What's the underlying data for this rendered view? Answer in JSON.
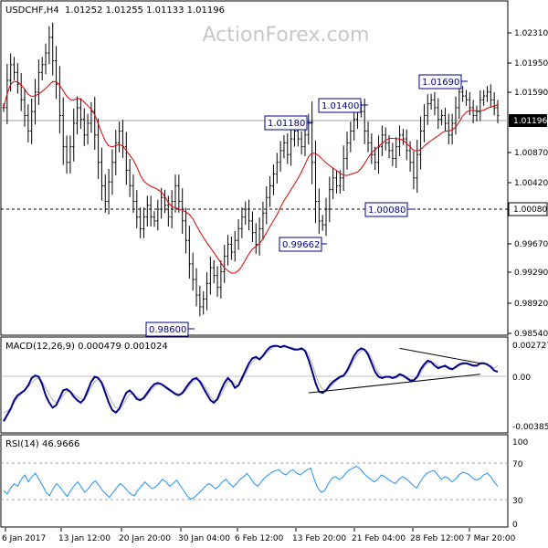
{
  "watermark": "ActionForex.com",
  "colors": {
    "background": "#ffffff",
    "bars": "#000000",
    "moving_average": "#e00000",
    "macd_line": "#00008b",
    "macd_signal": "#b0b0b0",
    "rsi_line": "#1e90ff",
    "label_border": "#00008b",
    "current_price_box": "#000000"
  },
  "chart_data": [
    {
      "type": "bar",
      "panel": "price",
      "title": "USDCHF,H4  1.01252 1.01255 1.01133 1.01196",
      "symbol": "USDCHF,H4",
      "ohlc": {
        "open": 1.01252,
        "high": 1.01255,
        "low": 1.01133,
        "close": 1.01196
      },
      "x_tick_labels": [
        "6 Jan 2017",
        "13 Jan 12:00",
        "20 Jan 20:00",
        "30 Jan 04:00",
        "6 Feb 12:00",
        "13 Feb 20:00",
        "21 Feb 04:00",
        "28 Feb 12:00",
        "7 Mar 20:00"
      ],
      "y_tick_labels": [
        "1.02310",
        "1.01950",
        "1.01590",
        "1.01196",
        "1.00870",
        "1.00420",
        "1.00080",
        "0.99670",
        "0.99290",
        "0.98920",
        "0.98540"
      ],
      "ylim": [
        0.9841,
        1.0262
      ],
      "current_price": "1.01196",
      "horizontal_lines": [
        {
          "value": 1.01196,
          "style": "solid"
        },
        {
          "value": 1.0008,
          "style": "dashed"
        }
      ],
      "annotations": [
        {
          "text": "1.01690",
          "value": 1.0169
        },
        {
          "text": "1.01400",
          "value": 1.014
        },
        {
          "text": "1.01180",
          "value": 1.0118
        },
        {
          "text": "1.00080",
          "value": 1.0008
        },
        {
          "text": "0.99662",
          "value": 0.99662
        },
        {
          "text": "0.98600",
          "value": 0.986
        }
      ],
      "closes": [
        1.013,
        1.0165,
        1.0185,
        1.0175,
        1.016,
        1.014,
        1.012,
        1.01,
        1.0125,
        1.015,
        1.0175,
        1.0185,
        1.02,
        1.022,
        1.019,
        1.016,
        1.012,
        1.008,
        1.006,
        1.008,
        1.011,
        1.013,
        1.0115,
        1.0095,
        1.011,
        1.0125,
        1.0095,
        1.006,
        1.003,
        1.001,
        1.0035,
        1.006,
        1.0085,
        1.01,
        1.008,
        1.005,
        1.003,
        1.001,
        0.999,
        0.9975,
        0.999,
        1.0005,
        0.999,
        0.9985,
        1.0,
        1.0015,
        1.0005,
        0.999,
        1.001,
        1.003,
        1.001,
        0.9985,
        0.996,
        0.993,
        0.991,
        0.989,
        0.9875,
        0.9885,
        0.9905,
        0.9925,
        0.9915,
        0.99,
        0.992,
        0.994,
        0.9955,
        0.9945,
        0.996,
        0.9975,
        0.999,
        1.0,
        0.9985,
        0.997,
        0.9955,
        0.9975,
        0.9995,
        1.0015,
        1.003,
        1.0045,
        1.006,
        1.0075,
        1.0085,
        1.007,
        1.009,
        1.01,
        1.009,
        1.008,
        1.0095,
        1.011,
        1.006,
        1.001,
        0.9985,
        0.998,
        1.0,
        1.0025,
        1.004,
        1.003,
        1.004,
        1.0065,
        1.0085,
        1.01,
        1.0115,
        1.013,
        1.0125,
        1.01,
        1.0085,
        1.007,
        1.006,
        1.008,
        1.0095,
        1.0085,
        1.0075,
        1.0065,
        1.008,
        1.0095,
        1.009,
        1.0075,
        1.006,
        1.004,
        1.007,
        1.01,
        1.012,
        1.0135,
        1.014,
        1.013,
        1.0115,
        1.012,
        1.011,
        1.0095,
        1.011,
        1.013,
        1.015,
        1.0145,
        1.014,
        1.013,
        1.012,
        1.0125,
        1.014,
        1.0145,
        1.015,
        1.014,
        1.013,
        1.012
      ],
      "moving_average_end": 1.0112
    },
    {
      "type": "line",
      "panel": "macd",
      "title": "MACD(12,26,9) 0.000479 0.001024",
      "name": "MACD(12,26,9)",
      "current_values": [
        0.000479,
        0.001024
      ],
      "y_tick_labels": [
        "0.002727",
        "0.00",
        "-0.003854"
      ],
      "ylim": [
        -0.003854,
        0.002727
      ],
      "series": [
        {
          "name": "MACD",
          "values": [
            -0.0035,
            -0.003,
            -0.0025,
            -0.0018,
            -0.0014,
            -0.0012,
            -0.001,
            -0.0006,
            0.0,
            0.0002,
            0.0001,
            -0.0005,
            -0.0014,
            -0.002,
            -0.0024,
            -0.0022,
            -0.0016,
            -0.001,
            -0.0009,
            -0.0011,
            -0.0015,
            -0.0018,
            -0.002,
            -0.0017,
            -0.001,
            -0.0003,
            0.0001,
            0.0,
            -0.0004,
            -0.0012,
            -0.002,
            -0.0026,
            -0.0028,
            -0.0025,
            -0.0018,
            -0.0012,
            -0.001,
            -0.0013,
            -0.0017,
            -0.0018,
            -0.0016,
            -0.0012,
            -0.0008,
            -0.0005,
            -0.0004,
            -0.0005,
            -0.0007,
            -0.0009,
            -0.0011,
            -0.0013,
            -0.0014,
            -0.0012,
            -0.0008,
            -0.0004,
            -0.0001,
            0.0,
            -0.0003,
            -0.0008,
            -0.0013,
            -0.0018,
            -0.002,
            -0.0017,
            -0.001,
            -0.0004,
            0.0,
            -0.0003,
            -0.0008,
            -0.0006,
            0.0,
            0.0006,
            0.0012,
            0.0016,
            0.0017,
            0.0015,
            0.0018,
            0.0022,
            0.0025,
            0.0026,
            0.0026,
            0.0025,
            0.0026,
            0.0025,
            0.0024,
            0.0023,
            0.0023,
            0.0024,
            0.0022,
            0.0015,
            0.0006,
            -0.0004,
            -0.0011,
            -0.0012,
            -0.001,
            -0.0006,
            -0.0003,
            -0.0001,
            0.0001,
            0.0002,
            0.0006,
            0.0012,
            0.0018,
            0.0022,
            0.0024,
            0.0023,
            0.0019,
            0.0012,
            0.0005,
            0.0001,
            0.0,
            0.0001,
            0.0001,
            0.0,
            0.0001,
            0.0003,
            0.0002,
            0.0,
            -0.0002,
            -0.0002,
            0.0001,
            0.0007,
            0.0011,
            0.0014,
            0.0013,
            0.001,
            0.0008,
            0.0009,
            0.001,
            0.0008,
            0.0007,
            0.0009,
            0.0011,
            0.0012,
            0.0012,
            0.0011,
            0.001,
            0.001,
            0.0012,
            0.0012,
            0.0011,
            0.0009,
            0.0006,
            0.0005
          ]
        },
        {
          "name": "Signal",
          "values": [
            -0.0028,
            -0.0027,
            -0.0024,
            -0.002,
            -0.0016,
            -0.0013,
            -0.001,
            -0.0007,
            -0.0004,
            -0.0001,
            0.0,
            -0.0003,
            -0.0008,
            -0.0013,
            -0.0018,
            -0.002,
            -0.0018,
            -0.0014,
            -0.0011,
            -0.0011,
            -0.0013,
            -0.0015,
            -0.0017,
            -0.0017,
            -0.0013,
            -0.0007,
            -0.0003,
            -0.0001,
            -0.0003,
            -0.0008,
            -0.0014,
            -0.002,
            -0.0024,
            -0.0025,
            -0.0022,
            -0.0017,
            -0.0013,
            -0.0013,
            -0.0015,
            -0.0017,
            -0.0017,
            -0.0014,
            -0.001,
            -0.0007,
            -0.0005,
            -0.0005,
            -0.0006,
            -0.0008,
            -0.001,
            -0.0012,
            -0.0013,
            -0.0013,
            -0.001,
            -0.0006,
            -0.0003,
            -0.0001,
            -0.0002,
            -0.0005,
            -0.001,
            -0.0015,
            -0.0018,
            -0.0018,
            -0.0014,
            -0.0008,
            -0.0003,
            -0.0002,
            -0.0005,
            -0.0006,
            -0.0002,
            0.0003,
            0.0009,
            0.0013,
            0.0016,
            0.0016,
            0.0017,
            0.002,
            0.0023,
            0.0025,
            0.0026,
            0.0025,
            0.0025,
            0.0025,
            0.0025,
            0.0024,
            0.0023,
            0.0023,
            0.0023,
            0.0019,
            0.0012,
            0.0003,
            -0.0005,
            -0.0009,
            -0.001,
            -0.0008,
            -0.0005,
            -0.0002,
            0.0,
            0.0001,
            0.0004,
            0.0009,
            0.0015,
            0.0019,
            0.0022,
            0.0023,
            0.0021,
            0.0016,
            0.0009,
            0.0004,
            0.0001,
            0.0001,
            0.0001,
            0.0,
            0.0,
            0.0002,
            0.0002,
            0.0001,
            -0.0001,
            -0.0001,
            0.0,
            0.0004,
            0.0009,
            0.0012,
            0.0013,
            0.0012,
            0.001,
            0.0009,
            0.0009,
            0.0009,
            0.0008,
            0.0008,
            0.001,
            0.0011,
            0.0012,
            0.0011,
            0.0011,
            0.001,
            0.0011,
            0.0012,
            0.0011,
            0.001,
            0.0008,
            0.001
          ]
        }
      ],
      "triangle_lines": [
        {
          "from": {
            "bar": 113,
            "value": 0.0024
          },
          "to": {
            "bar": 136,
            "value": 0.0012
          }
        },
        {
          "from": {
            "bar": 87,
            "value": -0.0012
          },
          "to": {
            "bar": 136,
            "value": 0.0003
          }
        }
      ]
    },
    {
      "type": "line",
      "panel": "rsi",
      "title": "RSI(14) 46.9666",
      "name": "RSI(14)",
      "current_value": 46.9666,
      "y_tick_labels": [
        "100",
        "70",
        "30",
        "0"
      ],
      "ylim": [
        0,
        100
      ],
      "levels": [
        70,
        30
      ],
      "values": [
        42,
        38,
        45,
        50,
        47,
        55,
        60,
        52,
        58,
        62,
        55,
        48,
        40,
        36,
        44,
        50,
        46,
        40,
        35,
        42,
        48,
        52,
        46,
        40,
        44,
        50,
        53,
        48,
        42,
        38,
        34,
        40,
        45,
        50,
        47,
        42,
        38,
        36,
        42,
        47,
        52,
        48,
        44,
        46,
        50,
        55,
        52,
        47,
        50,
        54,
        48,
        42,
        36,
        32,
        34,
        38,
        42,
        46,
        50,
        48,
        44,
        47,
        52,
        55,
        50,
        46,
        50,
        55,
        58,
        62,
        56,
        50,
        47,
        52,
        57,
        60,
        63,
        65,
        66,
        62,
        60,
        64,
        66,
        62,
        60,
        63,
        66,
        68,
        55,
        45,
        40,
        42,
        50,
        56,
        58,
        55,
        57,
        62,
        66,
        68,
        70,
        67,
        62,
        58,
        55,
        52,
        55,
        60,
        58,
        55,
        52,
        50,
        55,
        58,
        56,
        52,
        48,
        45,
        52,
        58,
        62,
        64,
        65,
        60,
        55,
        58,
        56,
        52,
        55,
        60,
        63,
        62,
        60,
        56,
        54,
        56,
        60,
        62,
        58,
        52,
        47
      ]
    }
  ]
}
